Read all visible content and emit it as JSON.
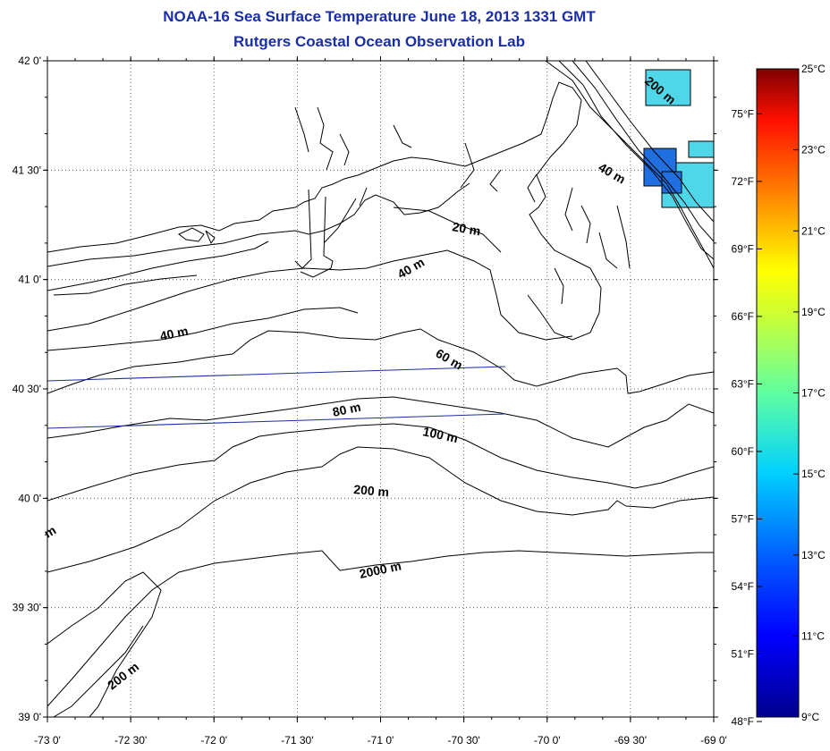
{
  "title": {
    "line1": "NOAA-16 Sea Surface Temperature June 18, 2013 1331 GMT",
    "line2": "Rutgers Coastal Ocean Observation Lab"
  },
  "axes": {
    "lon_labels": [
      "-73 0'",
      "-72 30'",
      "-72 0'",
      "-71 30'",
      "-71 0'",
      "-70 30'",
      "-70 0'",
      "-69 30'",
      "-69 0'"
    ],
    "lat_labels": [
      "42 0'",
      "41 30'",
      "41 0'",
      "40 30'",
      "40 0'",
      "39 30'",
      "39 0'"
    ],
    "lon_range": [
      -73,
      -69
    ],
    "lat_range": [
      39,
      42
    ],
    "grid": "dotted"
  },
  "contours": {
    "l20": "20 m",
    "l40a": "40 m",
    "l40b": "40 m",
    "l40c": "40 m",
    "l60": "60 m",
    "l80": "80 m",
    "l100": "100 m",
    "l200a": "200 m",
    "l200b": "200 m",
    "l200c": "200 m",
    "l2000": "2000 m",
    "lm": "m"
  },
  "colorbar": {
    "celsius": [
      "25°C",
      "23°C",
      "21°C",
      "19°C",
      "17°C",
      "15°C",
      "13°C",
      "11°C",
      "9°C"
    ],
    "fahrenheit": [
      "75°F",
      "72°F",
      "69°F",
      "66°F",
      "63°F",
      "60°F",
      "57°F",
      "54°F",
      "51°F",
      "48°F"
    ],
    "range_c": [
      9,
      25
    ],
    "colors": [
      "#00008f",
      "#0000ff",
      "#0080ff",
      "#00ffff",
      "#80ff80",
      "#ffff00",
      "#ff8000",
      "#ff0000",
      "#800000"
    ]
  },
  "sst_patch_color_a": "#4fd6e8",
  "sst_patch_color_b": "#1f6fe0"
}
